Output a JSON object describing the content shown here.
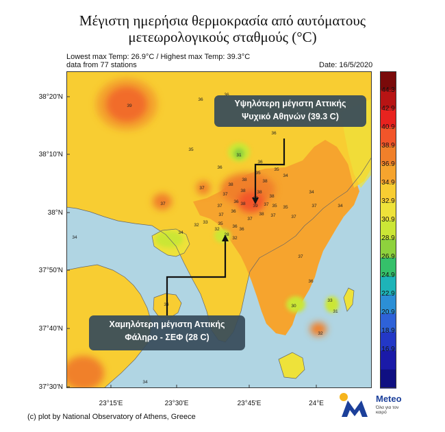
{
  "title": {
    "line1": "Μέγιστη ημερήσια θερμοκρασία από αυτόματους",
    "line2": "μετεωρολογικούς σταθμούς (°C)"
  },
  "info": {
    "range": "Lowest max Temp: 26.9°C / Highest max Temp: 39.3°C",
    "stations": "data from 77 stations",
    "date": "Date: 16/5/2020"
  },
  "lat_labels": [
    "38°20'N",
    "38°10'N",
    "38°N",
    "37°50'N",
    "37°40'N",
    "37°30'N"
  ],
  "lon_labels": [
    "23°15'E",
    "23°30'E",
    "23°45'E",
    "24°E"
  ],
  "colorbar": {
    "labels": [
      "44.3",
      "42.9",
      "40.9",
      "38.9",
      "36.9",
      "34.9",
      "32.9",
      "30.9",
      "28.9",
      "26.9",
      "24.9",
      "22.9",
      "20.9",
      "18.9",
      "16.9"
    ],
    "colors": [
      "#7a0a0a",
      "#b81414",
      "#e8231f",
      "#f2552a",
      "#f0802a",
      "#f6a42e",
      "#f8cd32",
      "#eee23a",
      "#cbe636",
      "#8ed23d",
      "#35c06a",
      "#1eb4b8",
      "#2c8fd6",
      "#2e62d8",
      "#2338c6",
      "#1a1aa8",
      "#0f0f82"
    ]
  },
  "callouts": {
    "highest_line1": "Υψηλότερη μέγιστη Αττικής",
    "highest_line2": "Ψυχικό Αθηνών (39.3 C)",
    "lowest_line1": "Χαμηλότερη μέγιστη Αττικής",
    "lowest_line2": "Φάληρο - ΣΕΦ (28 C)"
  },
  "stations": [
    {
      "v": "39"
    },
    {
      "v": "36"
    },
    {
      "v": "36"
    },
    {
      "v": "36"
    },
    {
      "v": "35"
    },
    {
      "v": "31"
    },
    {
      "v": "36"
    },
    {
      "v": "36"
    },
    {
      "v": "35"
    },
    {
      "v": "35"
    },
    {
      "v": "34"
    },
    {
      "v": "37"
    },
    {
      "v": "38"
    },
    {
      "v": "38"
    },
    {
      "v": "38"
    },
    {
      "v": "38"
    },
    {
      "v": "38"
    },
    {
      "v": "37"
    },
    {
      "v": "37"
    },
    {
      "v": "38"
    },
    {
      "v": "36"
    },
    {
      "v": "38"
    },
    {
      "v": "39"
    },
    {
      "v": "37"
    },
    {
      "v": "35"
    },
    {
      "v": "35"
    },
    {
      "v": "34"
    },
    {
      "v": "37"
    },
    {
      "v": "36"
    },
    {
      "v": "37"
    },
    {
      "v": "37"
    },
    {
      "v": "37"
    },
    {
      "v": "38"
    },
    {
      "v": "37"
    },
    {
      "v": "37"
    },
    {
      "v": "33"
    },
    {
      "v": "32"
    },
    {
      "v": "35"
    },
    {
      "v": "32"
    },
    {
      "v": "36"
    },
    {
      "v": "36"
    },
    {
      "v": "32"
    },
    {
      "v": "28"
    },
    {
      "v": "34"
    },
    {
      "v": "37"
    },
    {
      "v": "37"
    },
    {
      "v": "36"
    },
    {
      "v": "34"
    },
    {
      "v": "34"
    },
    {
      "v": "34"
    },
    {
      "v": "30"
    },
    {
      "v": "33"
    },
    {
      "v": "31"
    },
    {
      "v": "32"
    },
    {
      "v": "34"
    }
  ],
  "footer": "(c) plot by National Observatory of Athens, Greece",
  "logo": {
    "name": "Meteo",
    "tagline": "Όλα για τον καιρό"
  }
}
